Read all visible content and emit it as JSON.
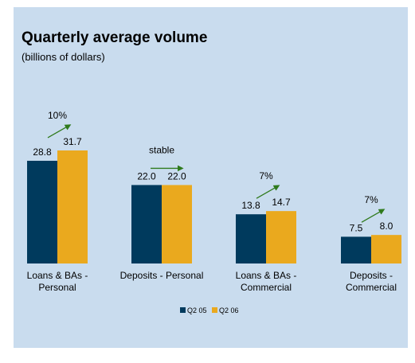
{
  "header": {
    "title": "Quarterly average volume",
    "subtitle": "(billions of dollars)"
  },
  "chart_data": {
    "type": "bar",
    "categories": [
      [
        "Loans & BAs -",
        "Personal"
      ],
      [
        "Deposits - Personal"
      ],
      [
        "Loans & BAs -",
        "Commercial"
      ],
      [
        "Deposits -",
        "Commercial"
      ]
    ],
    "series": [
      {
        "name": "Q2 05",
        "values": [
          28.8,
          22.0,
          13.8,
          7.5
        ],
        "color": "#003a5d"
      },
      {
        "name": "Q2 06",
        "values": [
          31.7,
          22.0,
          14.7,
          8.0
        ],
        "color": "#eaa91e"
      }
    ],
    "value_labels": [
      [
        "28.8",
        "22.0",
        "13.8",
        "7.5"
      ],
      [
        "31.7",
        "22.0",
        "14.7",
        "8.0"
      ]
    ],
    "annotations": [
      "10%",
      "stable",
      "7%",
      "7%"
    ],
    "annotation_arrows": [
      "up",
      "flat",
      "up",
      "up"
    ],
    "arrow_color": "#2f7a1c",
    "ylim": [
      0,
      33
    ],
    "grid": false,
    "legend_position": "bottom"
  }
}
